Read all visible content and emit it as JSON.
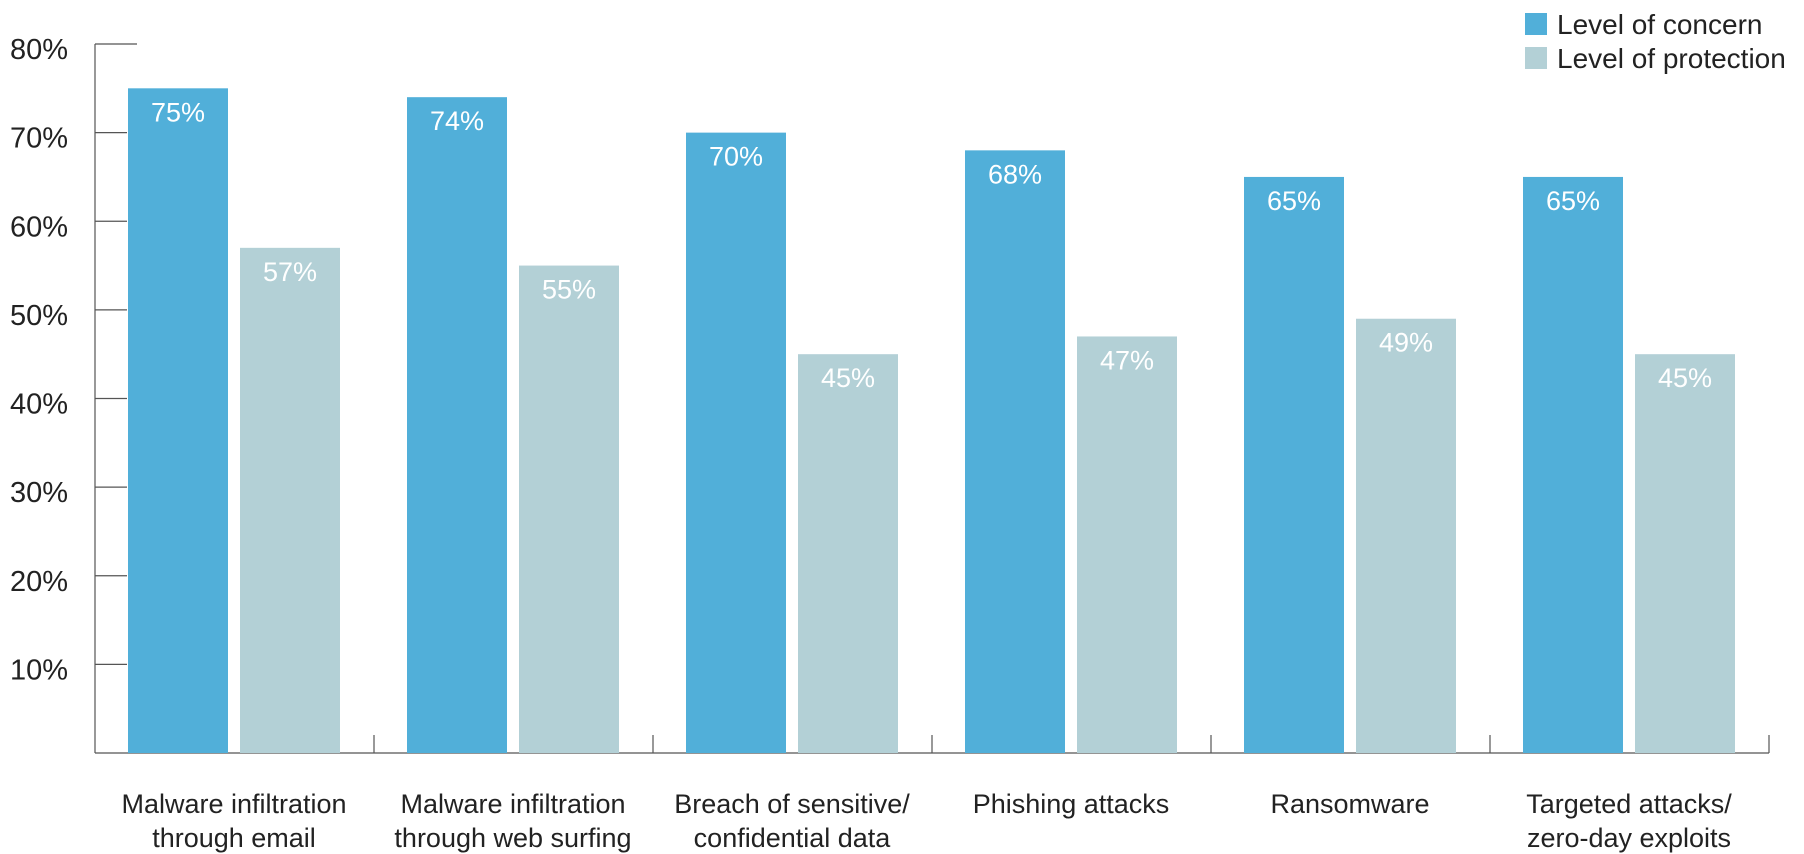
{
  "chart_data": {
    "type": "bar",
    "categories": [
      [
        "Malware infiltration",
        "through email"
      ],
      [
        "Malware infiltration",
        "through web surfing"
      ],
      [
        "Breach of sensitive/",
        "confidential data"
      ],
      [
        "Phishing attacks"
      ],
      [
        "Ransomware"
      ],
      [
        "Targeted attacks/",
        "zero-day exploits"
      ]
    ],
    "series": [
      {
        "name": "Level of concern",
        "color": "#51afd9",
        "values": [
          75,
          74,
          70,
          68,
          65,
          65
        ],
        "labels": [
          "75%",
          "74%",
          "70%",
          "68%",
          "65%",
          "65%"
        ]
      },
      {
        "name": "Level of protection",
        "color": "#b3d0d6",
        "values": [
          57,
          55,
          45,
          47,
          49,
          45
        ],
        "labels": [
          "57%",
          "55%",
          "45%",
          "47%",
          "49%",
          "45%"
        ]
      }
    ],
    "yticks": [
      10,
      20,
      30,
      40,
      50,
      60,
      70,
      80
    ],
    "ytick_labels": [
      "10%",
      "20%",
      "30%",
      "40%",
      "50%",
      "60%",
      "70%",
      "80%"
    ],
    "ylim": [
      0,
      80
    ],
    "title": "",
    "xlabel": "",
    "ylabel": "",
    "grid": false,
    "legend_position": "top-right"
  }
}
